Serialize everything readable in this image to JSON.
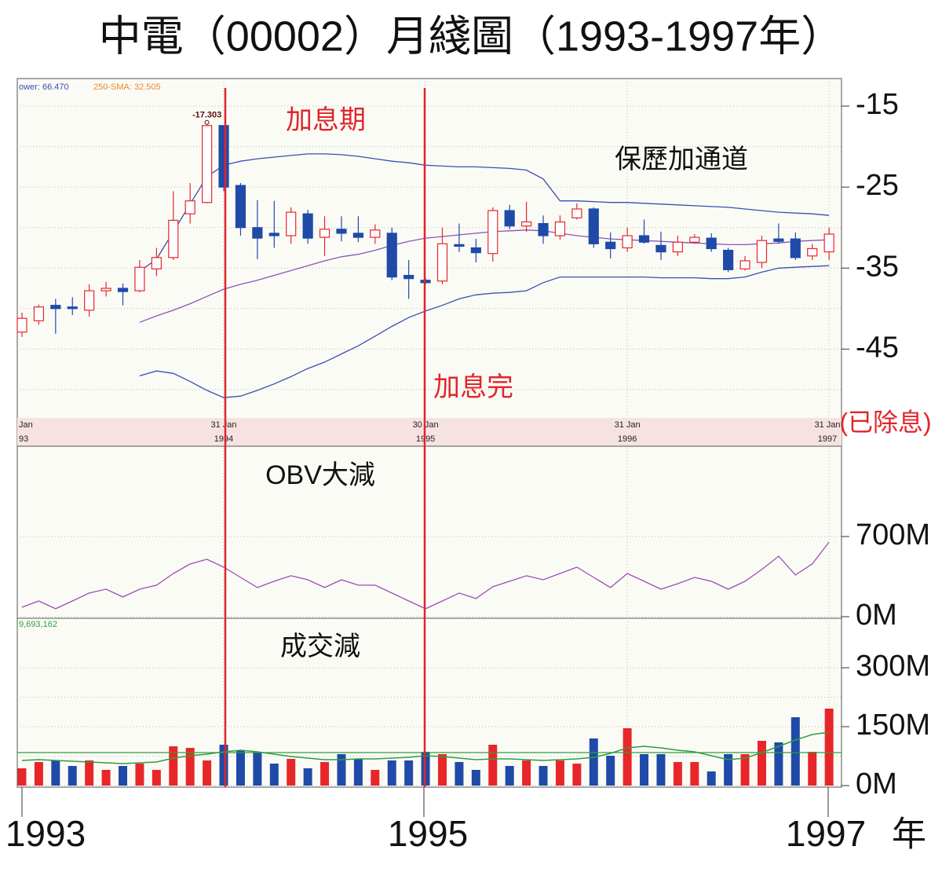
{
  "title": "中電（00002）月綫圖（1993-1997年）",
  "annotations": {
    "hike_period": "加息期",
    "bollinger": "保歷加通道",
    "hike_end": "加息完",
    "ex_dividend": "(已除息)",
    "obv_note": "OBV大減",
    "volume_note": "成交減"
  },
  "x_axis": {
    "labels": [
      "1993",
      "1995",
      "1997"
    ],
    "unit": "年"
  },
  "chart_data": [
    {
      "type": "candlestick",
      "legend": [
        {
          "text": "ower: 66.470",
          "color": "#3a4fb0"
        },
        {
          "text": "250-SMA: 32.505",
          "color": "#e8872a"
        }
      ],
      "date_labels": [
        {
          "top": "Jan",
          "bottom": "93"
        },
        {
          "top": "31 Jan",
          "bottom": "1994"
        },
        {
          "top": "30 Jan",
          "bottom": "1995"
        },
        {
          "top": "31 Jan",
          "bottom": "1996"
        },
        {
          "top": "31 Jan",
          "bottom": "1997"
        }
      ],
      "open": [
        -42.9,
        -41.5,
        -39.6,
        -39.8,
        -40.2,
        -37.8,
        -37.5,
        -37.8,
        -35.1,
        -33.7,
        -28.3,
        -26.9,
        -17.4,
        -24.8,
        -30.0,
        -30.7,
        -31.0,
        -28.3,
        -31.2,
        -30.2,
        -30.7,
        -31.2,
        -30.7,
        -35.9,
        -36.5,
        -36.6,
        -32.1,
        -32.5,
        -33.2,
        -27.9,
        -29.8,
        -29.5,
        -31.0,
        -28.8,
        -27.7,
        -31.8,
        -32.5,
        -31.0,
        -32.2,
        -33.0,
        -31.8,
        -31.3,
        -32.8,
        -35.1,
        -34.3,
        -31.4,
        -31.4,
        -33.5,
        -33.0
      ],
      "high": [
        -40.5,
        -39.5,
        -38.8,
        -38.6,
        -37,
        -36.7,
        -36.9,
        -34,
        -32.5,
        -25.5,
        -24.5,
        -17.303,
        -17.4,
        -24.5,
        -26.6,
        -26.7,
        -27.5,
        -27.8,
        -28.6,
        -28.6,
        -28.6,
        -29.6,
        -30,
        -34,
        -36.2,
        -30,
        -29.5,
        -31.4,
        -27.5,
        -27.2,
        -26.8,
        -28.5,
        -28.5,
        -27.0,
        -27.5,
        -30.6,
        -30,
        -29,
        -30.5,
        -31,
        -30.8,
        -30.7,
        -32.5,
        -33.5,
        -31,
        -29.5,
        -30.6,
        -32,
        -30
      ],
      "low": [
        -43.5,
        -42,
        -43.1,
        -40.8,
        -41,
        -38.5,
        -39.6,
        -38,
        -36,
        -34,
        -29.5,
        -27,
        -25.5,
        -31,
        -33.9,
        -32.5,
        -32,
        -32,
        -33.5,
        -31.7,
        -31.8,
        -32,
        -36.5,
        -38.8,
        -37,
        -37,
        -33,
        -34.3,
        -34.2,
        -30.2,
        -30.5,
        -32,
        -31.5,
        -29,
        -32.5,
        -33.8,
        -33,
        -32,
        -34,
        -33.5,
        -32,
        -33,
        -35.5,
        -35.3,
        -35,
        -32,
        -34,
        -34,
        -34
      ],
      "close": [
        -41.2,
        -39.8,
        -40.0,
        -40.0,
        -37.8,
        -37.5,
        -37.9,
        -34.9,
        -33.7,
        -29.1,
        -26.7,
        -17.4,
        -25.0,
        -30.0,
        -31.3,
        -31.0,
        -28.1,
        -31.3,
        -30.2,
        -30.7,
        -31.2,
        -30.3,
        -36.1,
        -36.3,
        -36.8,
        -32.0,
        -32.3,
        -33.1,
        -27.9,
        -29.8,
        -29.3,
        -31.0,
        -29.3,
        -27.7,
        -32.0,
        -32.6,
        -31.0,
        -31.8,
        -33.0,
        -31.8,
        -31.2,
        -32.6,
        -35.2,
        -34.1,
        -31.6,
        -31.7,
        -33.7,
        -32.6,
        -30.8
      ],
      "up_color": "#e8262a",
      "down_color": "#1f4aa8",
      "bands": [
        {
          "color": "#3a4fb0",
          "values": [
            null,
            null,
            null,
            null,
            null,
            null,
            null,
            -35.4,
            -33.9,
            -30.5,
            -27.1,
            -23.7,
            -22.3,
            -21.8,
            -21.5,
            -21.3,
            -21.1,
            -20.9,
            -20.9,
            -21.0,
            -21.2,
            -21.5,
            -21.8,
            -22.0,
            -22.3,
            -22.4,
            -22.5,
            -22.5,
            -22.6,
            -22.7,
            -22.9,
            -24.0,
            -26.7,
            -26.7,
            -26.8,
            -26.9,
            -26.9,
            -27.0,
            -27.1,
            -27.2,
            -27.3,
            -27.4,
            -27.5,
            -27.7,
            -27.9,
            -28.1,
            -28.2,
            -28.3,
            -28.5
          ]
        },
        {
          "color": "#8a56b8",
          "values": [
            null,
            null,
            null,
            null,
            null,
            null,
            null,
            -41.7,
            -40.9,
            -40.2,
            -39.4,
            -38.5,
            -37.6,
            -37.0,
            -36.5,
            -35.9,
            -35.3,
            -34.7,
            -34.1,
            -33.6,
            -33.3,
            -32.8,
            -32.2,
            -31.7,
            -31.3,
            -31.1,
            -30.9,
            -30.7,
            -30.5,
            -30.4,
            -30.3,
            -30.4,
            -30.7,
            -31.0,
            -31.2,
            -31.4,
            -31.5,
            -31.6,
            -31.7,
            -31.8,
            -31.9,
            -32.0,
            -32.1,
            -32.1,
            -32.0,
            -31.9,
            -31.7,
            -31.6,
            -31.5
          ]
        },
        {
          "color": "#3a4fb0",
          "values": [
            null,
            null,
            null,
            null,
            null,
            null,
            null,
            -48.3,
            -47.7,
            -48.0,
            -49.0,
            -50.1,
            -51.0,
            -50.8,
            -50.1,
            -49.3,
            -48.4,
            -47.4,
            -46.6,
            -45.6,
            -44.6,
            -43.4,
            -42.2,
            -41.1,
            -40.3,
            -39.6,
            -38.8,
            -38.3,
            -38.1,
            -38.0,
            -37.8,
            -36.8,
            -36.1,
            -36.1,
            -36.1,
            -36.1,
            -36.1,
            -36.1,
            -36.2,
            -36.2,
            -36.2,
            -36.3,
            -36.3,
            -36.1,
            -35.5,
            -35.0,
            -34.9,
            -34.8,
            -34.7
          ]
        }
      ],
      "ylim": [
        -53.5,
        -11.6
      ],
      "yticks": [
        -15,
        -25,
        -35,
        -45
      ],
      "minor_yticks": [
        -20,
        -30,
        -40,
        -50
      ],
      "grid": true
    },
    {
      "type": "line",
      "color": "#9b4fb5",
      "values": [
        82,
        137,
        69,
        137,
        206,
        240,
        172,
        240,
        275,
        377,
        460,
        501,
        432,
        343,
        254,
        309,
        357,
        322,
        254,
        322,
        275,
        275,
        206,
        137,
        69,
        137,
        206,
        158,
        261,
        309,
        357,
        322,
        377,
        432,
        343,
        254,
        377,
        309,
        240,
        288,
        343,
        309,
        240,
        309,
        412,
        528,
        364,
        460,
        652
      ],
      "ylim": [
        -14,
        1475
      ],
      "yticks": [
        {
          "value": 0,
          "label": "0M"
        },
        {
          "value": 700,
          "label": "700M"
        }
      ],
      "grid": true
    },
    {
      "type": "bar",
      "label": "9,693,162",
      "values": [
        44,
        60,
        64,
        50,
        64,
        40,
        50,
        56,
        40,
        100,
        96,
        64,
        104,
        90,
        86,
        56,
        68,
        44,
        60,
        80,
        68,
        40,
        64,
        64,
        86,
        80,
        60,
        40,
        104,
        50,
        64,
        50,
        64,
        56,
        120,
        76,
        146,
        80,
        80,
        60,
        60,
        36,
        80,
        80,
        114,
        110,
        174,
        86,
        196
      ],
      "colors": [
        "#e8262a",
        "#e8262a",
        "#1f4aa8",
        "#1f4aa8",
        "#e8262a",
        "#e8262a",
        "#1f4aa8",
        "#e8262a",
        "#e8262a",
        "#e8262a",
        "#e8262a",
        "#e8262a",
        "#1f4aa8",
        "#1f4aa8",
        "#1f4aa8",
        "#1f4aa8",
        "#e8262a",
        "#1f4aa8",
        "#e8262a",
        "#1f4aa8",
        "#1f4aa8",
        "#e8262a",
        "#1f4aa8",
        "#1f4aa8",
        "#1f4aa8",
        "#e8262a",
        "#1f4aa8",
        "#1f4aa8",
        "#e8262a",
        "#1f4aa8",
        "#e8262a",
        "#1f4aa8",
        "#e8262a",
        "#e8262a",
        "#1f4aa8",
        "#1f4aa8",
        "#e8262a",
        "#1f4aa8",
        "#1f4aa8",
        "#e8262a",
        "#e8262a",
        "#1f4aa8",
        "#1f4aa8",
        "#e8262a",
        "#e8262a",
        "#1f4aa8",
        "#1f4aa8",
        "#e8262a",
        "#e8262a"
      ],
      "average": {
        "color": "#2e9e3e",
        "values": [
          64,
          66,
          64,
          62,
          60,
          58,
          56,
          58,
          60,
          70,
          76,
          80,
          86,
          90,
          86,
          80,
          74,
          70,
          66,
          66,
          68,
          68,
          70,
          72,
          76,
          74,
          70,
          66,
          68,
          68,
          66,
          64,
          66,
          68,
          72,
          82,
          96,
          100,
          96,
          90,
          86,
          76,
          66,
          70,
          84,
          100,
          116,
          130,
          136
        ]
      },
      "reference_line": 84,
      "ylim": [
        -4,
        426
      ],
      "yticks": [
        {
          "value": 0,
          "label": "0M"
        },
        {
          "value": 150,
          "label": "150M"
        },
        {
          "value": 300,
          "label": "300M"
        }
      ],
      "minor_yticks": [
        75,
        225
      ],
      "grid": true
    }
  ]
}
